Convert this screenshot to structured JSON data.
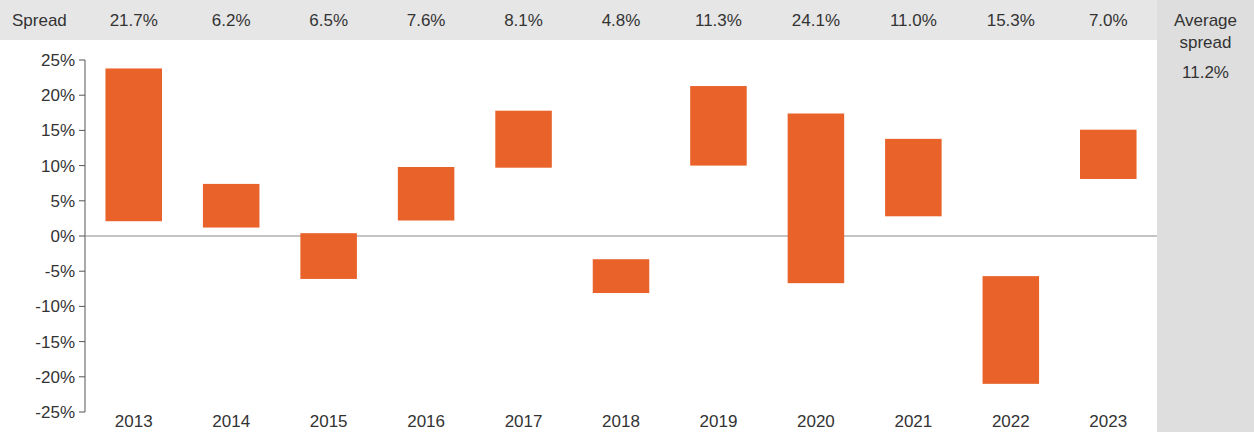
{
  "chart_data": {
    "type": "floating_bar",
    "categories": [
      "2013",
      "2014",
      "2015",
      "2016",
      "2017",
      "2018",
      "2019",
      "2020",
      "2021",
      "2022",
      "2023"
    ],
    "values": [
      23.8,
      7.4,
      0.4,
      9.8,
      17.8,
      -3.3,
      21.3,
      17.4,
      13.8,
      -5.7,
      15.1
    ],
    "low": [
      2.1,
      1.2,
      -6.1,
      2.2,
      9.7,
      -8.1,
      10.0,
      -6.7,
      2.8,
      -21.0,
      8.1
    ],
    "color": "#e8622a",
    "ylim": [
      -25,
      25
    ],
    "yticks": [
      {
        "value": -25,
        "label": "-25%"
      },
      {
        "value": -20,
        "label": "-20%"
      },
      {
        "value": -15,
        "label": "-15%"
      },
      {
        "value": -10,
        "label": "-10%"
      },
      {
        "value": -5,
        "label": "-5%"
      },
      {
        "value": 0,
        "label": "0%"
      },
      {
        "value": 5,
        "label": "5%"
      },
      {
        "value": 10,
        "label": "10%"
      },
      {
        "value": 15,
        "label": "15%"
      },
      {
        "value": 20,
        "label": "20%"
      },
      {
        "value": 25,
        "label": "25%"
      }
    ],
    "grid": false,
    "spread": {
      "label": "Spread",
      "values": [
        21.7,
        6.2,
        6.5,
        7.6,
        8.1,
        4.8,
        11.3,
        24.1,
        11.0,
        15.3,
        7.0
      ],
      "value_labels": [
        "21.7%",
        "6.2%",
        "6.5%",
        "7.6%",
        "8.1%",
        "4.8%",
        "11.3%",
        "24.1%",
        "11.0%",
        "15.3%",
        "7.0%"
      ]
    },
    "average": {
      "label": "Average spread",
      "value": 11.2,
      "value_label": "11.2%"
    }
  }
}
